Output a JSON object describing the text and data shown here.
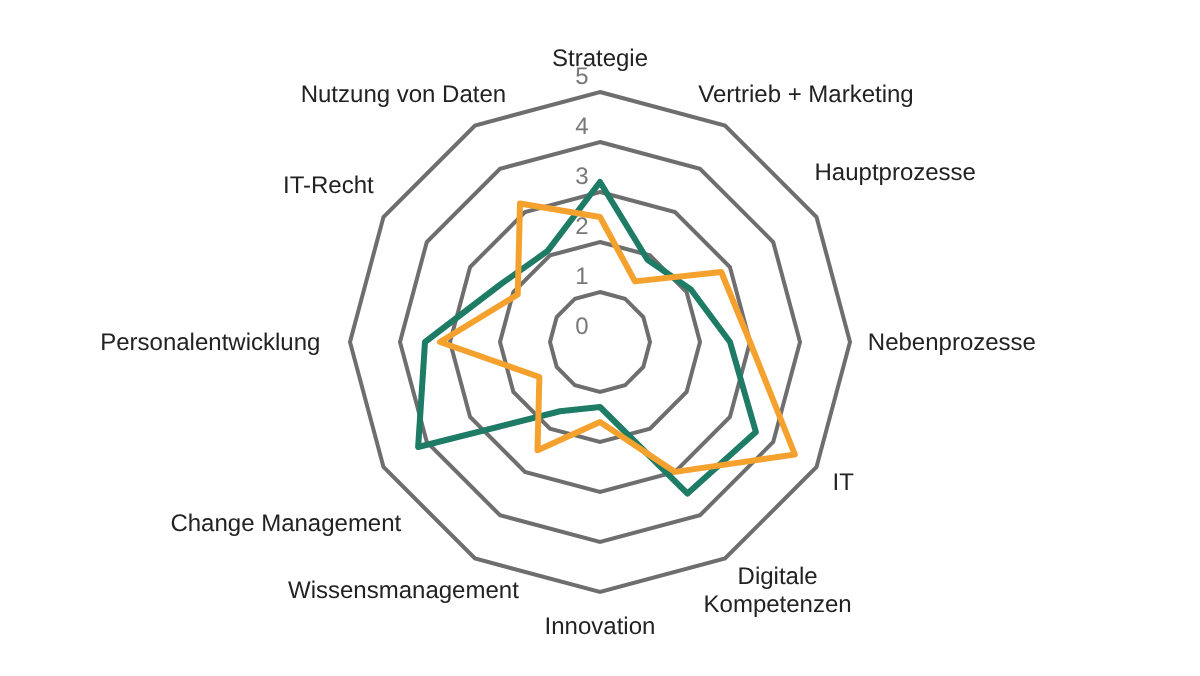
{
  "chart_data": {
    "type": "radar",
    "categories": [
      "Strategie",
      "Vertrieb + Marketing",
      "Hauptprozesse",
      "Nebenprozesse",
      "IT",
      "Digitale\nKompetenzen",
      "Innovation",
      "Wissensmanagement",
      "Change Management",
      "Personalentwicklung",
      "IT-Recht",
      "Nutzung von Daten"
    ],
    "series": [
      {
        "color": "#1e7b65",
        "values": [
          3.2,
          1.9,
          2.1,
          2.6,
          3.6,
          3.5,
          1.3,
          1.6,
          4.2,
          3.5,
          2.3,
          2.1
        ]
      },
      {
        "color": "#f5a12e",
        "values": [
          2.5,
          1.4,
          2.8,
          3.0,
          4.5,
          3.0,
          1.6,
          2.5,
          1.4,
          3.2,
          1.9,
          3.2
        ]
      }
    ],
    "ylim": [
      0,
      5
    ],
    "yticks": [
      0,
      1,
      2,
      3,
      4,
      5
    ],
    "grid": true,
    "legend": false,
    "marker": "none",
    "line_style": "solid"
  }
}
